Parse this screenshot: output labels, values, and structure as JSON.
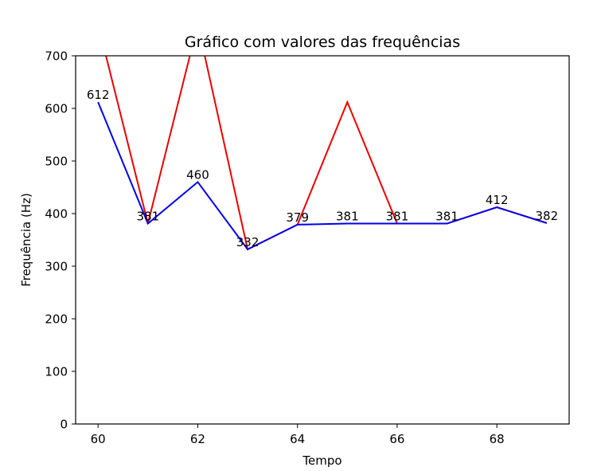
{
  "chart_data": {
    "type": "line",
    "title": "Gráfico com valores das frequências",
    "xlabel": "Tempo",
    "ylabel": "Frequência (Hz)",
    "xlim": [
      59.55,
      69.45
    ],
    "ylim": [
      0,
      700
    ],
    "xticks": [
      60,
      62,
      64,
      66,
      68
    ],
    "yticks": [
      0,
      100,
      200,
      300,
      400,
      500,
      600,
      700
    ],
    "grid": false,
    "legend": "none",
    "x": [
      60,
      61,
      62,
      63,
      64,
      65,
      66,
      67,
      68,
      69
    ],
    "series": [
      {
        "color": "#ee0000",
        "values": [
          760,
          381,
          760,
          332,
          379,
          612,
          381,
          381,
          412,
          382
        ]
      },
      {
        "color": "#0000ee",
        "values": [
          612,
          381,
          460,
          332,
          379,
          381,
          381,
          381,
          412,
          382
        ],
        "data_labels": [
          "612",
          "381",
          "460",
          "332",
          "379",
          "381",
          "381",
          "381",
          "412",
          "382"
        ]
      }
    ]
  }
}
